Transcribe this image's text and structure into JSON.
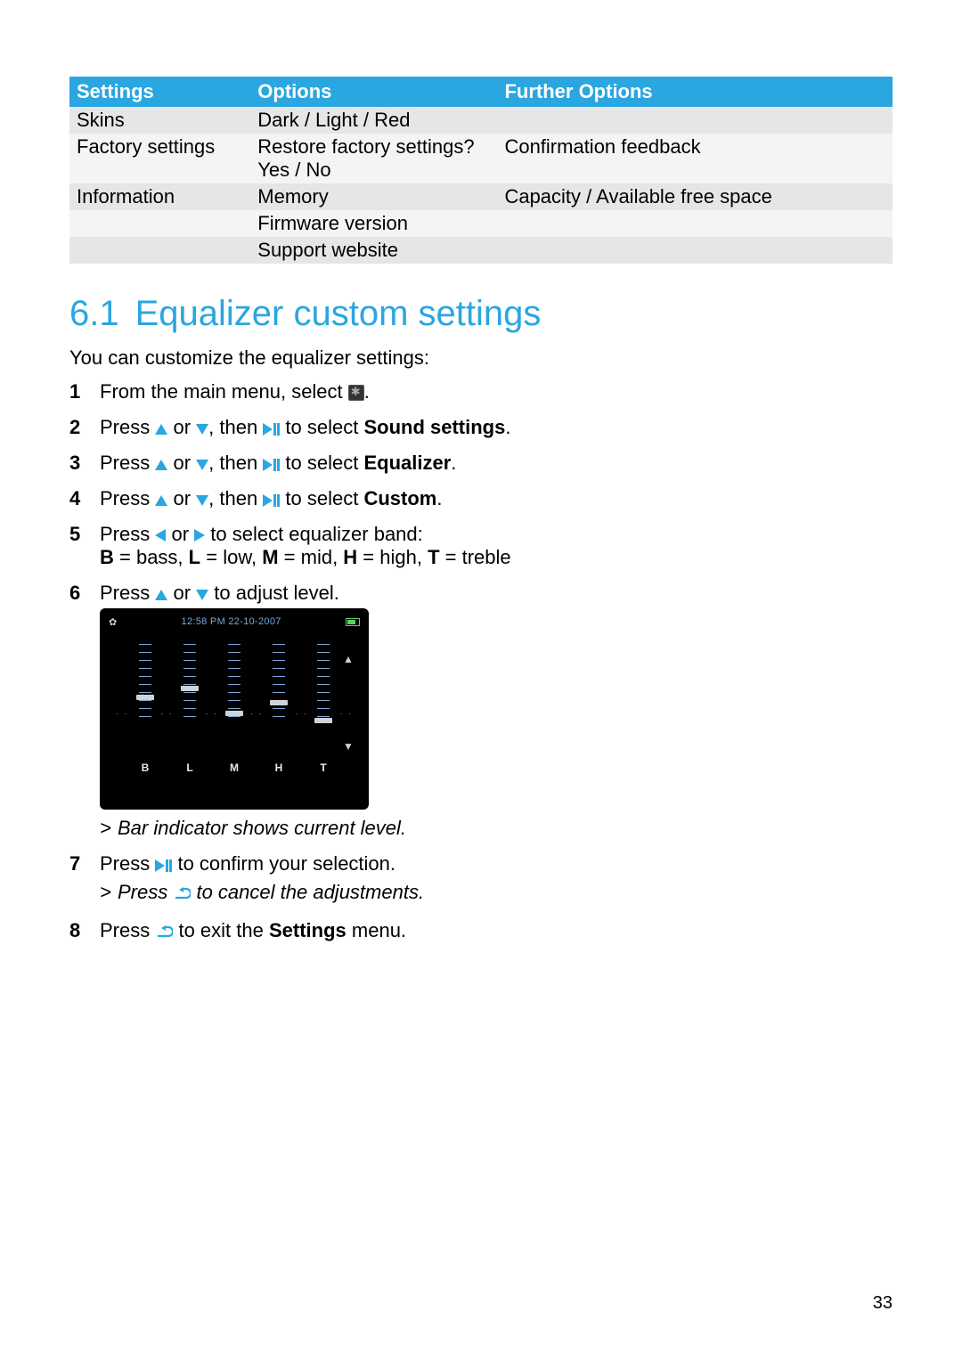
{
  "table": {
    "headers": [
      "Settings",
      "Options",
      "Further Options"
    ],
    "rows": [
      {
        "c1": "Skins",
        "c2": "Dark / Light / Red",
        "c3": "",
        "shade": "even"
      },
      {
        "c1": "Factory settings",
        "c2": "Restore factory settings? Yes / No",
        "c3": "Confirmation feedback",
        "shade": "odd"
      },
      {
        "c1": "Information",
        "c2": "Memory",
        "c3": "Capacity / Available free space",
        "shade": "even"
      },
      {
        "c1": "",
        "c2": "Firmware version",
        "c3": "",
        "shade": "odd"
      },
      {
        "c1": "",
        "c2": "Support website",
        "c3": "",
        "shade": "even"
      }
    ]
  },
  "section": {
    "number": "6.1",
    "title": "Equalizer custom settings"
  },
  "lead": "You can customize the equalizer settings:",
  "steps": {
    "s1_a": "From the main menu, select ",
    "s1_b": ".",
    "s2_a": "Press ",
    "s2_b": " or ",
    "s2_c": ", then ",
    "s2_d": " to select ",
    "s2_e": "Sound settings",
    "s2_f": ".",
    "s3_e": "Equalizer",
    "s4_e": "Custom",
    "s5_a": "Press ",
    "s5_b": " or ",
    "s5_c": " to select equalizer band:",
    "s5_line2": "B = bass, L = low, M = mid, H = high, T = treble",
    "s5_bold": {
      "B": "B",
      "L": "L",
      "M": "M",
      "H": "H",
      "T": "T"
    },
    "s6": " to adjust level.",
    "s6_sub": "Bar indicator shows current level.",
    "s7_a": "Press ",
    "s7_b": " to confirm your selection.",
    "s7_sub_a": "Press ",
    "s7_sub_b": " to cancel the adjustments.",
    "s8_a": "Press ",
    "s8_b": " to exit the ",
    "s8_c": "Settings",
    "s8_d": " menu."
  },
  "eq": {
    "datetime": "12:58 PM  22-10-2007",
    "bands": [
      "B",
      "L",
      "M",
      "H",
      "T"
    ],
    "levels_pct": [
      52,
      60,
      38,
      48,
      32
    ],
    "tick_count": 10,
    "colors": {
      "bg": "#000000",
      "tick": "#7aa8d8",
      "marker": "#cfd2d6",
      "label": "#e8e8e8"
    }
  },
  "page_number": "33",
  "colors": {
    "accent": "#2aa6e0",
    "row_even": "#e6e6e6",
    "row_odd": "#f4f4f4"
  }
}
